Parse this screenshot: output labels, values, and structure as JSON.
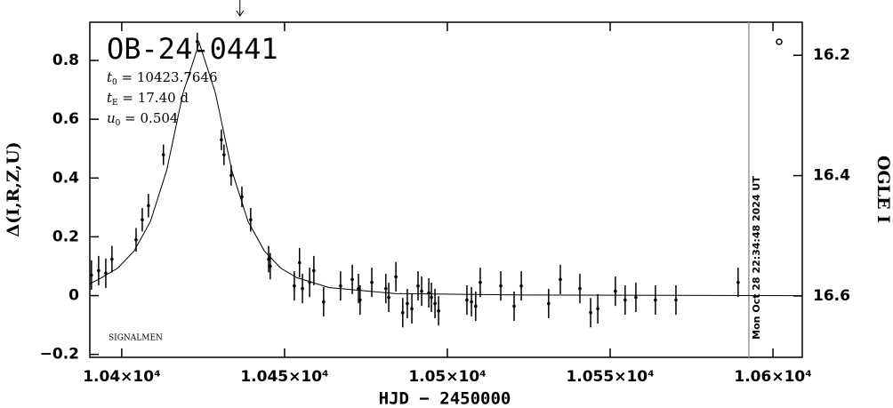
{
  "chart_data": {
    "type": "errorbar",
    "title": "OB-24-0441",
    "params": [
      {
        "symbol": "t",
        "sub": "0",
        "text": " = 10423.7646"
      },
      {
        "symbol": "t",
        "sub": "E",
        "text": " = 17.40  d"
      },
      {
        "symbol": "u",
        "sub": "0",
        "text": " = 0.504"
      }
    ],
    "credit": "SIGNALMEN",
    "timestamp": "Mon Oct 28 22:34:48 2024 UT",
    "now_x": 10592.6,
    "arrow_x": 10436.3,
    "x_label": "HJD − 2450000",
    "y_label": "Δ(I,R,Z,U)",
    "y2_label": "OGLE I",
    "xlim": [
      10390.2,
      10609
    ],
    "ylim": [
      -0.21,
      0.93
    ],
    "y2lim": [
      16.702,
      16.145
    ],
    "xticks": [
      {
        "value": 10400,
        "label": "1.04×10⁴"
      },
      {
        "value": 10450,
        "label": "1.045×10⁴"
      },
      {
        "value": 10500,
        "label": "1.05×10⁴"
      },
      {
        "value": 10550,
        "label": "1.055×10⁴"
      },
      {
        "value": 10600,
        "label": "1.06×10⁴"
      }
    ],
    "yticks": [
      {
        "value": -0.2,
        "label": "−0.2"
      },
      0,
      0.2,
      0.4,
      0.6,
      0.8
    ],
    "y2ticks": [
      16.2,
      16.4,
      16.6
    ],
    "color": "#000000",
    "x": [
      10390.7,
      10392.9,
      10395.1,
      10397,
      10404.4,
      10406.3,
      10408.2,
      10412.8,
      10423.2,
      10430.6,
      10431.4,
      10433.6,
      10436.9,
      10439.6,
      10445.1,
      10445.6,
      10453,
      10454.6,
      10455.5,
      10457.7,
      10459,
      10462,
      10467.2,
      10470.8,
      10472.7,
      10473.2,
      10476.8,
      10481.1,
      10482,
      10484.2,
      10486.3,
      10487.7,
      10489.1,
      10491,
      10492.1,
      10494.3,
      10495.1,
      10496.2,
      10497.3,
      10506,
      10507.4,
      10508.7,
      10510.1,
      10516.4,
      10520.5,
      10522.7,
      10531.1,
      10534.7,
      10540.7,
      10544,
      10546.2,
      10551.6,
      10554.6,
      10557.9,
      10563.9,
      10570.2,
      10589.3
    ],
    "values": [
      0.07,
      0.085,
      0.076,
      0.124,
      0.19,
      0.258,
      0.306,
      0.479,
      0.864,
      0.53,
      0.479,
      0.409,
      0.336,
      0.258,
      0.124,
      0.1,
      0.033,
      0.112,
      0.024,
      0.045,
      0.085,
      -0.021,
      0.033,
      0.055,
      0.024,
      -0.015,
      0.045,
      0.024,
      -0.006,
      0.064,
      -0.058,
      -0.027,
      -0.045,
      0.033,
      0.015,
      0.009,
      -0.006,
      -0.027,
      -0.052,
      -0.015,
      -0.021,
      -0.036,
      0.045,
      0.033,
      -0.036,
      0.033,
      -0.027,
      0.055,
      0.024,
      -0.058,
      -0.045,
      0.015,
      -0.015,
      -0.006,
      -0.015,
      -0.015,
      0.045
    ],
    "errors": [
      0.05,
      0.05,
      0.05,
      0.045,
      0.04,
      0.04,
      0.04,
      0.035,
      0.03,
      0.035,
      0.035,
      0.035,
      0.035,
      0.04,
      0.045,
      0.045,
      0.05,
      0.05,
      0.05,
      0.05,
      0.05,
      0.05,
      0.05,
      0.05,
      0.05,
      0.05,
      0.05,
      0.05,
      0.05,
      0.05,
      0.05,
      0.05,
      0.05,
      0.05,
      0.05,
      0.05,
      0.05,
      0.05,
      0.05,
      0.05,
      0.05,
      0.05,
      0.05,
      0.05,
      0.05,
      0.05,
      0.05,
      0.05,
      0.05,
      0.05,
      0.05,
      0.05,
      0.05,
      0.05,
      0.05,
      0.05,
      0.05
    ],
    "model_x": [
      10390.2,
      10393.8,
      10398.8,
      10403.8,
      10408.8,
      10413.8,
      10418.8,
      10423.8,
      10428.8,
      10433.8,
      10438.8,
      10443.8,
      10448.8,
      10453.8,
      10463.8,
      10483.8,
      10523.8,
      10609
    ],
    "model_values": [
      0.04,
      0.061,
      0.094,
      0.152,
      0.252,
      0.426,
      0.688,
      0.86,
      0.688,
      0.426,
      0.252,
      0.152,
      0.094,
      0.061,
      0.027,
      0.007,
      0.002,
      0
    ]
  }
}
